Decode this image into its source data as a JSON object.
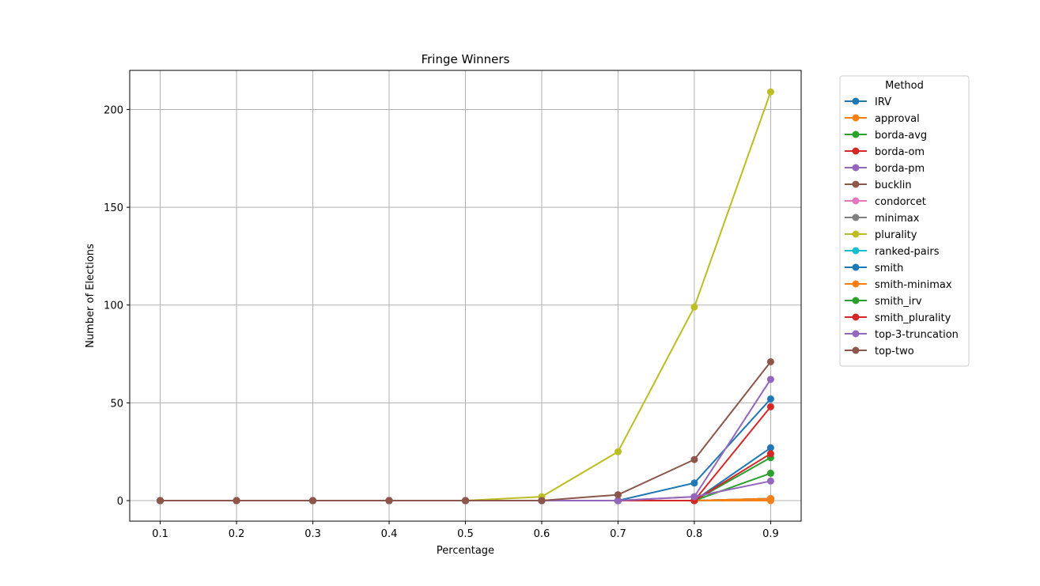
{
  "chart_data": {
    "type": "line",
    "title": "Fringe Winners",
    "xlabel": "Percentage",
    "ylabel": "Number of Elections",
    "x": [
      0.1,
      0.2,
      0.3,
      0.4,
      0.5,
      0.6,
      0.7,
      0.8,
      0.9
    ],
    "x_ticks": [
      "0.1",
      "0.2",
      "0.3",
      "0.4",
      "0.5",
      "0.6",
      "0.7",
      "0.8",
      "0.9"
    ],
    "y_ticks": [
      "0",
      "50",
      "100",
      "150",
      "200"
    ],
    "xlim": [
      0.06,
      0.94
    ],
    "ylim": [
      -10.5,
      220
    ],
    "grid": true,
    "legend": {
      "title": "Method",
      "placement": "outside-right"
    },
    "series": [
      {
        "name": "IRV",
        "color": "#1f77b4",
        "values": [
          0,
          0,
          0,
          0,
          0,
          0,
          0,
          9,
          52
        ]
      },
      {
        "name": "approval",
        "color": "#ff7f0e",
        "values": [
          0,
          0,
          0,
          0,
          0,
          0,
          0,
          0,
          0
        ]
      },
      {
        "name": "borda-avg",
        "color": "#2ca02c",
        "values": [
          0,
          0,
          0,
          0,
          0,
          0,
          0,
          0,
          22
        ]
      },
      {
        "name": "borda-om",
        "color": "#d62728",
        "values": [
          0,
          0,
          0,
          0,
          0,
          0,
          0,
          0,
          48
        ]
      },
      {
        "name": "borda-pm",
        "color": "#9467bd",
        "values": [
          0,
          0,
          0,
          0,
          0,
          0,
          0,
          2,
          62
        ]
      },
      {
        "name": "bucklin",
        "color": "#8c564b",
        "values": [
          0,
          0,
          0,
          0,
          0,
          0,
          0,
          0,
          1
        ]
      },
      {
        "name": "condorcet",
        "color": "#e377c2",
        "values": [
          0,
          0,
          0,
          0,
          0,
          0,
          0,
          0,
          1
        ]
      },
      {
        "name": "minimax",
        "color": "#7f7f7f",
        "values": [
          0,
          0,
          0,
          0,
          0,
          0,
          0,
          0,
          1
        ]
      },
      {
        "name": "plurality",
        "color": "#bcbd22",
        "values": [
          0,
          0,
          0,
          0,
          0,
          2,
          25,
          99,
          209
        ]
      },
      {
        "name": "ranked-pairs",
        "color": "#17becf",
        "values": [
          0,
          0,
          0,
          0,
          0,
          0,
          0,
          0,
          1
        ]
      },
      {
        "name": "smith",
        "color": "#1f77b4",
        "values": [
          0,
          0,
          0,
          0,
          0,
          0,
          0,
          0,
          27
        ]
      },
      {
        "name": "smith-minimax",
        "color": "#ff7f0e",
        "values": [
          0,
          0,
          0,
          0,
          0,
          0,
          0,
          0,
          1
        ]
      },
      {
        "name": "smith_irv",
        "color": "#2ca02c",
        "values": [
          0,
          0,
          0,
          0,
          0,
          0,
          0,
          0,
          14
        ]
      },
      {
        "name": "smith_plurality",
        "color": "#d62728",
        "values": [
          0,
          0,
          0,
          0,
          0,
          0,
          0,
          0,
          24
        ]
      },
      {
        "name": "top-3-truncation",
        "color": "#9467bd",
        "values": [
          0,
          0,
          0,
          0,
          0,
          0,
          0,
          2,
          10
        ]
      },
      {
        "name": "top-two",
        "color": "#8c564b",
        "values": [
          0,
          0,
          0,
          0,
          0,
          0,
          3,
          21,
          71
        ]
      }
    ]
  }
}
